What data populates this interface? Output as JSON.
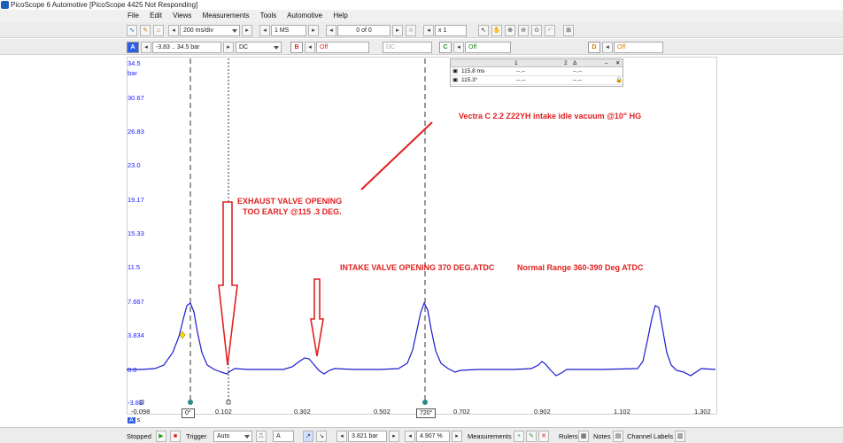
{
  "window": {
    "title": "PicoScope 6 Automotive [PicoScope 4425 Not Responding]"
  },
  "menu": [
    "File",
    "Edit",
    "Views",
    "Measurements",
    "Tools",
    "Automotive",
    "Help"
  ],
  "toolbar1": {
    "timebase": "200 ms/div",
    "samples": "1 MS",
    "capture_count": "0 of 0",
    "zoom": "x 1"
  },
  "toolbar2": {
    "channel_a_range": "-3.83 .. 34.5 bar",
    "channel_a_coupling": "DC",
    "channel_b_label": "B",
    "channel_b_range": "Off",
    "channel_b_coupling": "DC",
    "channel_c_label": "C",
    "channel_c_range": "Off",
    "channel_d_label": "D",
    "channel_d_range": "Off"
  },
  "rulers": {
    "headers": [
      "1",
      "2",
      "Δ"
    ],
    "rows": [
      [
        "115.8 ms",
        "--.--",
        "--.--"
      ],
      [
        "115.3°",
        "--.--",
        "--.--"
      ]
    ]
  },
  "y_axis": {
    "unit": "bar",
    "ticks": [
      "34.5",
      "30.67",
      "26.83",
      "23.0",
      "19.17",
      "15.33",
      "11.5",
      "7.667",
      "3.834",
      "0.0",
      "-3.83"
    ]
  },
  "x_axis": {
    "unit": "s",
    "ticks": [
      "-0.098",
      "0.102",
      "0.302",
      "0.502",
      "0.702",
      "0.902",
      "1.102",
      "1.302"
    ]
  },
  "ruler_labels": {
    "left": "0°",
    "right": "720°"
  },
  "annotations": {
    "title": "Vectra C 2.2   Z22YH intake idle vacuum @10\" HG",
    "exhaust_line1": "EXHAUST VALVE OPENING",
    "exhaust_line2": "TOO EARLY @115 .3 DEG.",
    "intake": "INTAKE VALVE OPENING 370 DEG.ATDC",
    "normal_range": "Normal Range 360-390 Deg ATDC"
  },
  "status": {
    "state": "Stopped",
    "trigger_label": "Trigger",
    "trigger_mode": "Auto",
    "trigger_channel": "A",
    "trigger_level": "3.821 bar",
    "pretrigger": "4.907 %",
    "measurements": "Measurements",
    "rulers": "Rulers",
    "notes": "Notes",
    "channel_labels": "Channel Labels"
  },
  "colors": {
    "trace": "#1a1ad0",
    "annotation": "#e02020",
    "axis_text": "#1a1aff",
    "ruler_marker": "#2a8a8a"
  }
}
